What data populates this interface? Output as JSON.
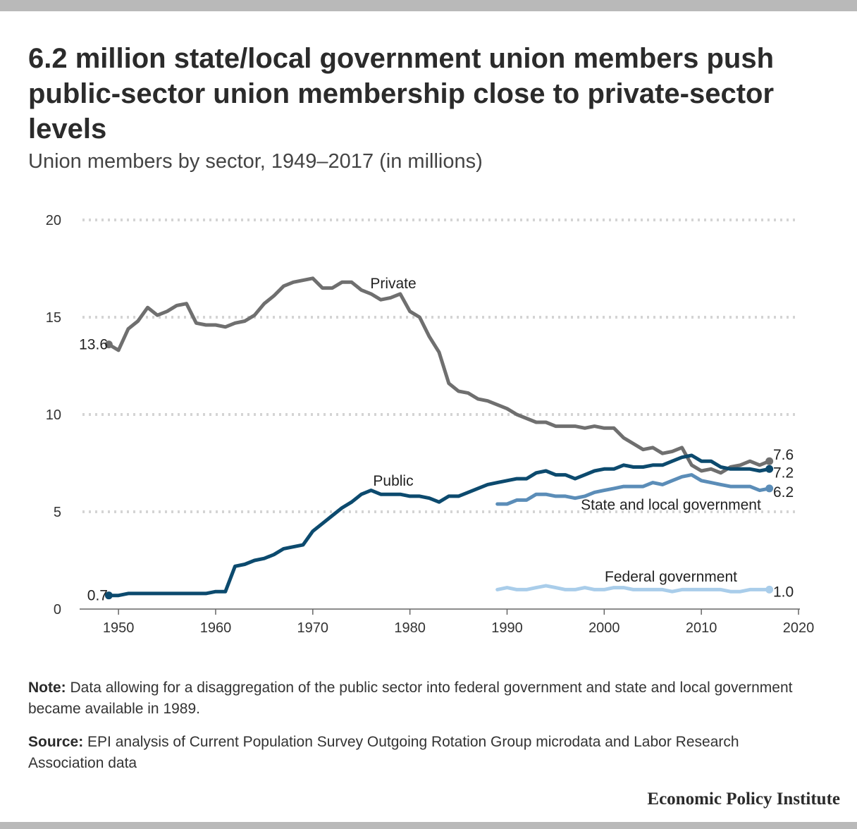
{
  "title": "6.2 million state/local government union members push public-sector union membership close to private-sector levels",
  "subtitle": "Union members by sector, 1949–2017 (in millions)",
  "note_label": "Note:",
  "note_text": "Data allowing for a disaggregation of the public sector into federal government and state and local government became available in 1989.",
  "source_label": "Source:",
  "source_text": "EPI analysis of Current Population Survey Outgoing Rotation Group microdata and Labor Research Association data",
  "brand": "Economic Policy Institute",
  "chart_data": {
    "type": "line",
    "xlim": [
      1946,
      2020
    ],
    "ylim": [
      0,
      20
    ],
    "x_ticks": [
      "1950",
      "1960",
      "1970",
      "1980",
      "1990",
      "2000",
      "2010",
      "2020"
    ],
    "y_ticks": [
      "0",
      "5",
      "10",
      "15",
      "20"
    ],
    "grid": "horizontal dotted",
    "series": [
      {
        "name": "Private",
        "color": "#6f6f6f",
        "start_label": "13.6",
        "end_label": "7.6",
        "points": [
          [
            1949,
            13.6
          ],
          [
            1950,
            13.3
          ],
          [
            1951,
            14.4
          ],
          [
            1952,
            14.8
          ],
          [
            1953,
            15.5
          ],
          [
            1954,
            15.1
          ],
          [
            1955,
            15.3
          ],
          [
            1956,
            15.6
          ],
          [
            1957,
            15.7
          ],
          [
            1958,
            14.7
          ],
          [
            1959,
            14.6
          ],
          [
            1960,
            14.6
          ],
          [
            1961,
            14.5
          ],
          [
            1962,
            14.7
          ],
          [
            1963,
            14.8
          ],
          [
            1964,
            15.1
          ],
          [
            1965,
            15.7
          ],
          [
            1966,
            16.1
          ],
          [
            1967,
            16.6
          ],
          [
            1968,
            16.8
          ],
          [
            1969,
            16.9
          ],
          [
            1970,
            17.0
          ],
          [
            1971,
            16.5
          ],
          [
            1972,
            16.5
          ],
          [
            1973,
            16.8
          ],
          [
            1974,
            16.8
          ],
          [
            1975,
            16.4
          ],
          [
            1976,
            16.2
          ],
          [
            1977,
            15.9
          ],
          [
            1978,
            16.0
          ],
          [
            1979,
            16.2
          ],
          [
            1980,
            15.3
          ],
          [
            1981,
            15.0
          ],
          [
            1982,
            14.0
          ],
          [
            1983,
            13.2
          ],
          [
            1984,
            11.6
          ],
          [
            1985,
            11.2
          ],
          [
            1986,
            11.1
          ],
          [
            1987,
            10.8
          ],
          [
            1988,
            10.7
          ],
          [
            1989,
            10.5
          ],
          [
            1990,
            10.3
          ],
          [
            1991,
            10.0
          ],
          [
            1992,
            9.8
          ],
          [
            1993,
            9.6
          ],
          [
            1994,
            9.6
          ],
          [
            1995,
            9.4
          ],
          [
            1996,
            9.4
          ],
          [
            1997,
            9.4
          ],
          [
            1998,
            9.3
          ],
          [
            1999,
            9.4
          ],
          [
            2000,
            9.3
          ],
          [
            2001,
            9.3
          ],
          [
            2002,
            8.8
          ],
          [
            2003,
            8.5
          ],
          [
            2004,
            8.2
          ],
          [
            2005,
            8.3
          ],
          [
            2006,
            8.0
          ],
          [
            2007,
            8.1
          ],
          [
            2008,
            8.3
          ],
          [
            2009,
            7.4
          ],
          [
            2010,
            7.1
          ],
          [
            2011,
            7.2
          ],
          [
            2012,
            7.0
          ],
          [
            2013,
            7.3
          ],
          [
            2014,
            7.4
          ],
          [
            2015,
            7.6
          ],
          [
            2016,
            7.4
          ],
          [
            2017,
            7.6
          ]
        ]
      },
      {
        "name": "Public",
        "color": "#0c4a6e",
        "start_label": "0.7",
        "end_label": "7.2",
        "points": [
          [
            1949,
            0.7
          ],
          [
            1950,
            0.7
          ],
          [
            1951,
            0.8
          ],
          [
            1952,
            0.8
          ],
          [
            1953,
            0.8
          ],
          [
            1954,
            0.8
          ],
          [
            1955,
            0.8
          ],
          [
            1956,
            0.8
          ],
          [
            1957,
            0.8
          ],
          [
            1958,
            0.8
          ],
          [
            1959,
            0.8
          ],
          [
            1960,
            0.9
          ],
          [
            1961,
            0.9
          ],
          [
            1962,
            2.2
          ],
          [
            1963,
            2.3
          ],
          [
            1964,
            2.5
          ],
          [
            1965,
            2.6
          ],
          [
            1966,
            2.8
          ],
          [
            1967,
            3.1
          ],
          [
            1968,
            3.2
          ],
          [
            1969,
            3.3
          ],
          [
            1970,
            4.0
          ],
          [
            1971,
            4.4
          ],
          [
            1972,
            4.8
          ],
          [
            1973,
            5.2
          ],
          [
            1974,
            5.5
          ],
          [
            1975,
            5.9
          ],
          [
            1976,
            6.1
          ],
          [
            1977,
            5.9
          ],
          [
            1978,
            5.9
          ],
          [
            1979,
            5.9
          ],
          [
            1980,
            5.8
          ],
          [
            1981,
            5.8
          ],
          [
            1982,
            5.7
          ],
          [
            1983,
            5.5
          ],
          [
            1984,
            5.8
          ],
          [
            1985,
            5.8
          ],
          [
            1986,
            6.0
          ],
          [
            1987,
            6.2
          ],
          [
            1988,
            6.4
          ],
          [
            1989,
            6.5
          ],
          [
            1990,
            6.6
          ],
          [
            1991,
            6.7
          ],
          [
            1992,
            6.7
          ],
          [
            1993,
            7.0
          ],
          [
            1994,
            7.1
          ],
          [
            1995,
            6.9
          ],
          [
            1996,
            6.9
          ],
          [
            1997,
            6.7
          ],
          [
            1998,
            6.9
          ],
          [
            1999,
            7.1
          ],
          [
            2000,
            7.2
          ],
          [
            2001,
            7.2
          ],
          [
            2002,
            7.4
          ],
          [
            2003,
            7.3
          ],
          [
            2004,
            7.3
          ],
          [
            2005,
            7.4
          ],
          [
            2006,
            7.4
          ],
          [
            2007,
            7.6
          ],
          [
            2008,
            7.8
          ],
          [
            2009,
            7.9
          ],
          [
            2010,
            7.6
          ],
          [
            2011,
            7.6
          ],
          [
            2012,
            7.3
          ],
          [
            2013,
            7.2
          ],
          [
            2014,
            7.2
          ],
          [
            2015,
            7.2
          ],
          [
            2016,
            7.1
          ],
          [
            2017,
            7.2
          ]
        ]
      },
      {
        "name": "State and local government",
        "color": "#5b8db8",
        "end_label": "6.2",
        "points": [
          [
            1989,
            5.4
          ],
          [
            1990,
            5.4
          ],
          [
            1991,
            5.6
          ],
          [
            1992,
            5.6
          ],
          [
            1993,
            5.9
          ],
          [
            1994,
            5.9
          ],
          [
            1995,
            5.8
          ],
          [
            1996,
            5.8
          ],
          [
            1997,
            5.7
          ],
          [
            1998,
            5.8
          ],
          [
            1999,
            6.0
          ],
          [
            2000,
            6.1
          ],
          [
            2001,
            6.2
          ],
          [
            2002,
            6.3
          ],
          [
            2003,
            6.3
          ],
          [
            2004,
            6.3
          ],
          [
            2005,
            6.5
          ],
          [
            2006,
            6.4
          ],
          [
            2007,
            6.6
          ],
          [
            2008,
            6.8
          ],
          [
            2009,
            6.9
          ],
          [
            2010,
            6.6
          ],
          [
            2011,
            6.5
          ],
          [
            2012,
            6.4
          ],
          [
            2013,
            6.3
          ],
          [
            2014,
            6.3
          ],
          [
            2015,
            6.3
          ],
          [
            2016,
            6.1
          ],
          [
            2017,
            6.2
          ]
        ]
      },
      {
        "name": "Federal government",
        "color": "#a9cdea",
        "end_label": "1.0",
        "points": [
          [
            1989,
            1.0
          ],
          [
            1990,
            1.1
          ],
          [
            1991,
            1.0
          ],
          [
            1992,
            1.0
          ],
          [
            1993,
            1.1
          ],
          [
            1994,
            1.2
          ],
          [
            1995,
            1.1
          ],
          [
            1996,
            1.0
          ],
          [
            1997,
            1.0
          ],
          [
            1998,
            1.1
          ],
          [
            1999,
            1.0
          ],
          [
            2000,
            1.0
          ],
          [
            2001,
            1.1
          ],
          [
            2002,
            1.1
          ],
          [
            2003,
            1.0
          ],
          [
            2004,
            1.0
          ],
          [
            2005,
            1.0
          ],
          [
            2006,
            1.0
          ],
          [
            2007,
            0.9
          ],
          [
            2008,
            1.0
          ],
          [
            2009,
            1.0
          ],
          [
            2010,
            1.0
          ],
          [
            2011,
            1.0
          ],
          [
            2012,
            1.0
          ],
          [
            2013,
            0.9
          ],
          [
            2014,
            0.9
          ],
          [
            2015,
            1.0
          ],
          [
            2016,
            1.0
          ],
          [
            2017,
            1.0
          ]
        ]
      }
    ]
  }
}
